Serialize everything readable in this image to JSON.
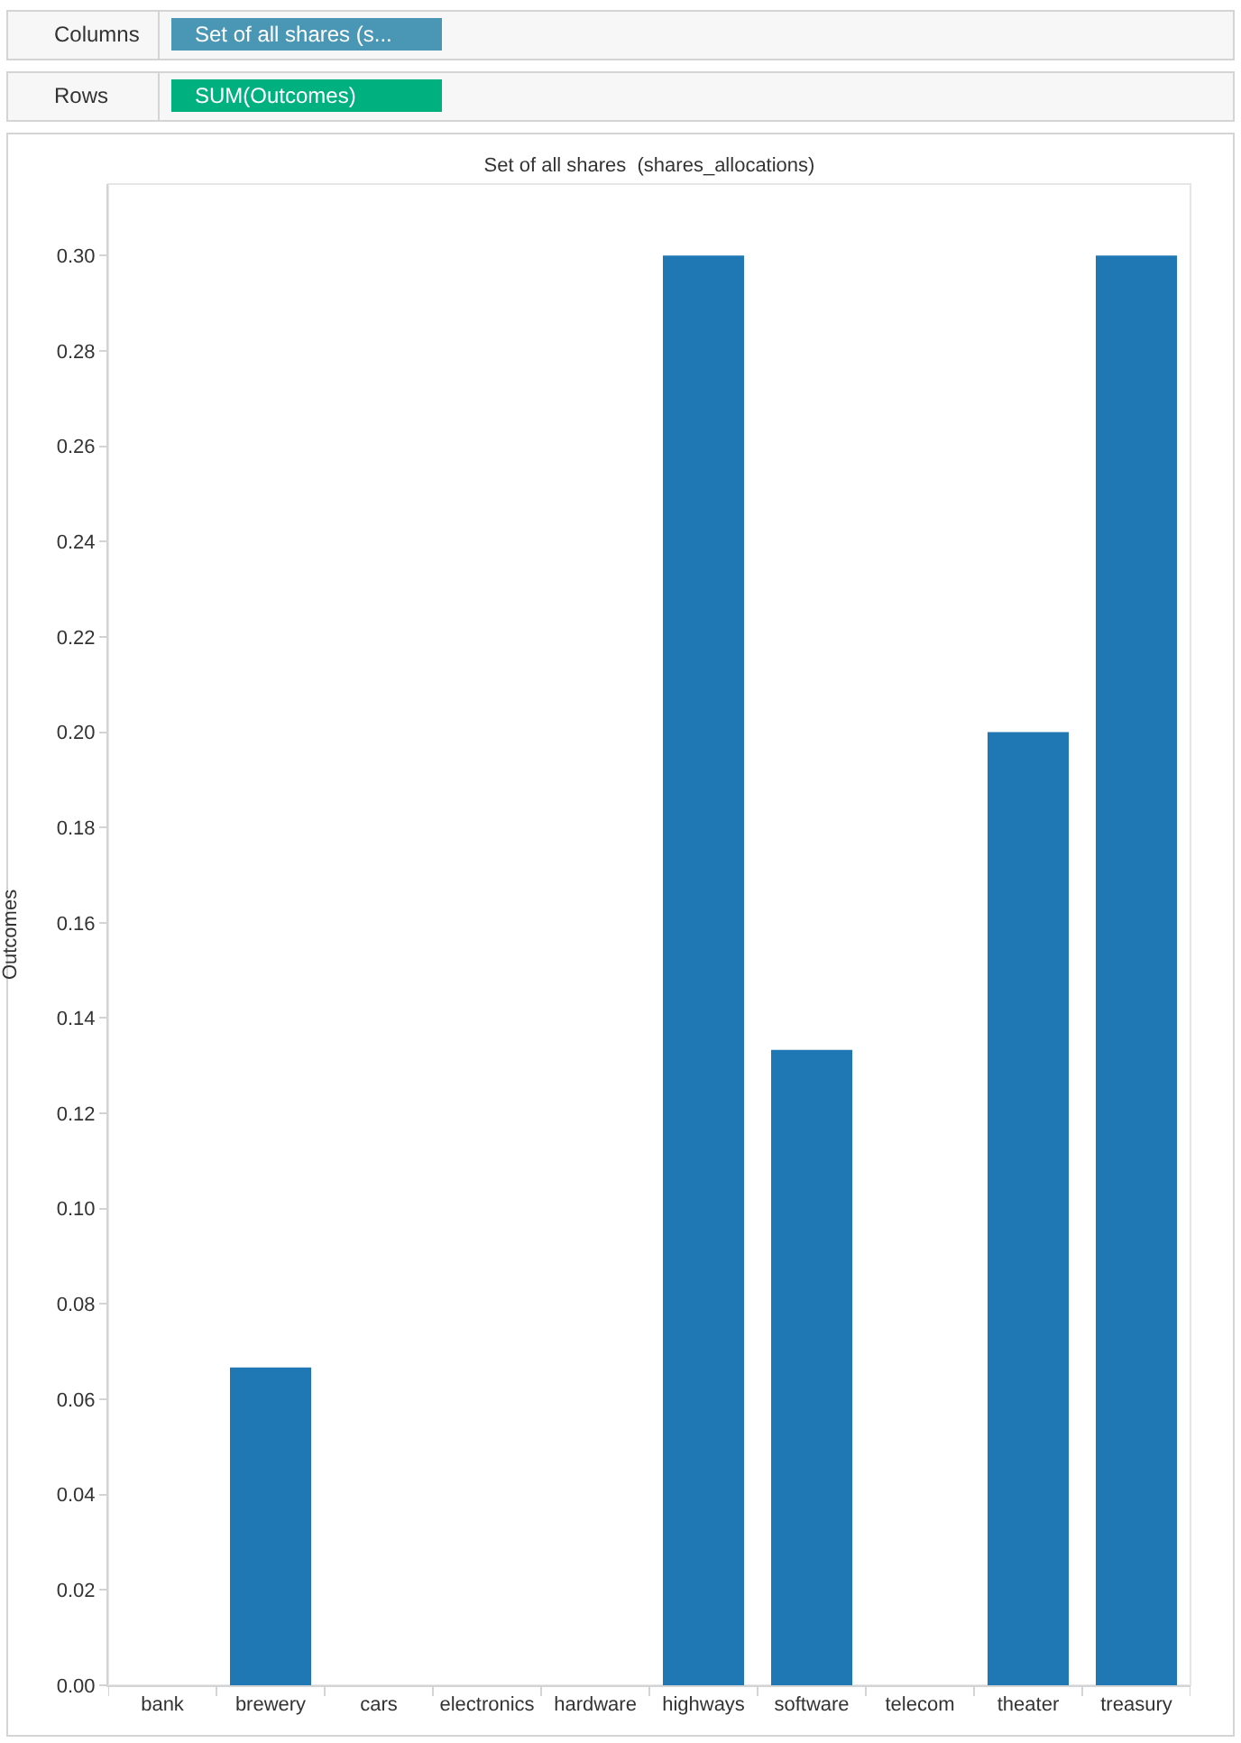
{
  "chart_data": {
    "type": "bar",
    "title": "Set of all shares  (shares_allocations)",
    "ylabel": "Outcomes",
    "categories": [
      "bank",
      "brewery",
      "cars",
      "electronics",
      "hardware",
      "highways",
      "software",
      "telecom",
      "theater",
      "treasury"
    ],
    "values": [
      0,
      0.0667,
      0,
      0,
      0,
      0.3,
      0.1333,
      0,
      0.2,
      0.3
    ],
    "color": "#1f77b4",
    "ylim": [
      0,
      0.315
    ],
    "yticks": [
      {
        "value": 0,
        "label": "0.00"
      },
      {
        "value": 0.02,
        "label": "0.02"
      },
      {
        "value": 0.04,
        "label": "0.04"
      },
      {
        "value": 0.06,
        "label": "0.06"
      },
      {
        "value": 0.08,
        "label": "0.08"
      },
      {
        "value": 0.1,
        "label": "0.10"
      },
      {
        "value": 0.12,
        "label": "0.12"
      },
      {
        "value": 0.14,
        "label": "0.14"
      },
      {
        "value": 0.16,
        "label": "0.16"
      },
      {
        "value": 0.18,
        "label": "0.18"
      },
      {
        "value": 0.2,
        "label": "0.20"
      },
      {
        "value": 0.22,
        "label": "0.22"
      },
      {
        "value": 0.24,
        "label": "0.24"
      },
      {
        "value": 0.26,
        "label": "0.26"
      },
      {
        "value": 0.28,
        "label": "0.28"
      },
      {
        "value": 0.3,
        "label": "0.30"
      }
    ],
    "grid": false,
    "annotations": [
      "Columns",
      "Set of all shares (s...",
      "Rows",
      "SUM(Outcomes)"
    ]
  }
}
